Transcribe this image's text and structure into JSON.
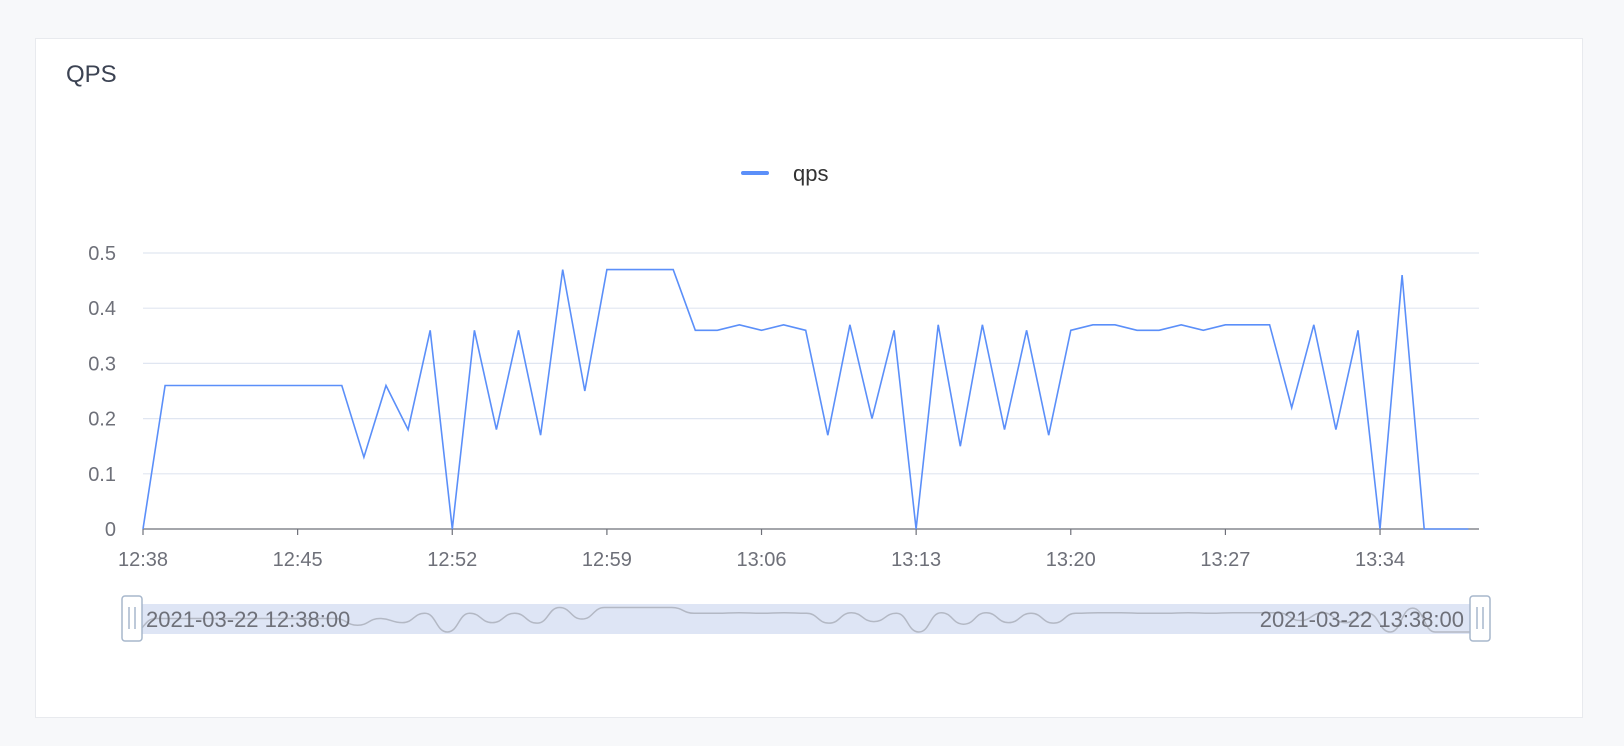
{
  "card": {
    "title": "QPS"
  },
  "legend": {
    "label": "qps",
    "color": "#5b8ff9"
  },
  "colors": {
    "series": "#5b8ff9",
    "grid": "#e0e6f1",
    "axis": "#6e7079",
    "zoom_fill": "#dee5f5",
    "zoom_shadow": "#b3b8c4"
  },
  "chart_data": {
    "type": "line",
    "title": "QPS",
    "xlabel": "",
    "ylabel": "",
    "ylim": [
      0,
      0.5
    ],
    "yticks": [
      "0",
      "0.1",
      "0.2",
      "0.3",
      "0.4",
      "0.5"
    ],
    "ytick_values": [
      0,
      0.1,
      0.2,
      0.3,
      0.4,
      0.5
    ],
    "xticks": [
      "12:38",
      "12:45",
      "12:52",
      "12:59",
      "13:06",
      "13:13",
      "13:20",
      "13:27",
      "13:34"
    ],
    "xtick_minutes": [
      0,
      7,
      14,
      21,
      28,
      35,
      42,
      49,
      56
    ],
    "x_unit": "minute",
    "grid": true,
    "legend_position": "top-center",
    "series": [
      {
        "name": "qps",
        "x": [
          "12:38",
          "12:39",
          "12:40",
          "12:41",
          "12:42",
          "12:43",
          "12:44",
          "12:45",
          "12:46",
          "12:47",
          "12:48",
          "12:49",
          "12:50",
          "12:51",
          "12:52",
          "12:53",
          "12:54",
          "12:55",
          "12:56",
          "12:57",
          "12:58",
          "12:59",
          "13:00",
          "13:01",
          "13:02",
          "13:03",
          "13:04",
          "13:05",
          "13:06",
          "13:07",
          "13:08",
          "13:09",
          "13:10",
          "13:11",
          "13:12",
          "13:13",
          "13:14",
          "13:15",
          "13:16",
          "13:17",
          "13:18",
          "13:19",
          "13:20",
          "13:21",
          "13:22",
          "13:23",
          "13:24",
          "13:25",
          "13:26",
          "13:27",
          "13:28",
          "13:29",
          "13:30",
          "13:31",
          "13:32",
          "13:33",
          "13:34",
          "13:35",
          "13:36",
          "13:37",
          "13:38"
        ],
        "values": [
          0,
          0.26,
          0.26,
          0.26,
          0.26,
          0.26,
          0.26,
          0.26,
          0.26,
          0.26,
          0.13,
          0.26,
          0.18,
          0.36,
          0,
          0.36,
          0.18,
          0.36,
          0.17,
          0.47,
          0.25,
          0.47,
          0.47,
          0.47,
          0.47,
          0.36,
          0.36,
          0.37,
          0.36,
          0.37,
          0.36,
          0.17,
          0.37,
          0.2,
          0.36,
          0,
          0.37,
          0.15,
          0.37,
          0.18,
          0.36,
          0.17,
          0.36,
          0.37,
          0.37,
          0.36,
          0.36,
          0.37,
          0.36,
          0.37,
          0.37,
          0.37,
          0.22,
          0.37,
          0.18,
          0.36,
          0,
          0.46,
          0,
          0,
          0
        ]
      }
    ]
  },
  "datazoom": {
    "start_label": "2021-03-22 12:38:00",
    "end_label": "2021-03-22 13:38:00"
  }
}
